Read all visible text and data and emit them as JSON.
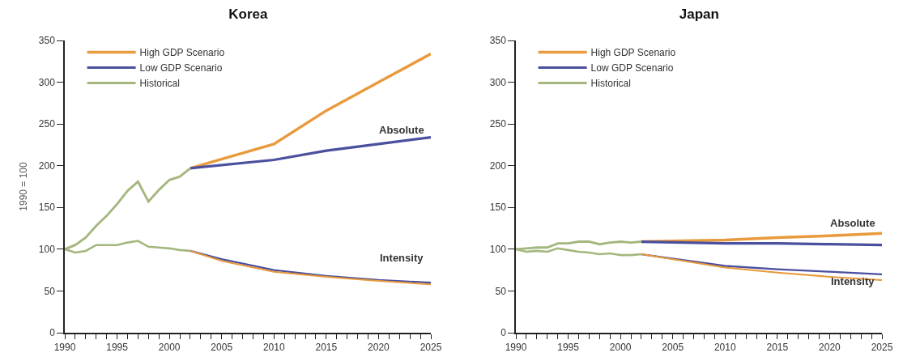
{
  "chart_data": [
    {
      "type": "line",
      "title": "Korea",
      "ylabel": "1990 = 100",
      "xlim": [
        1990,
        2025
      ],
      "ylim": [
        0,
        350
      ],
      "yticks": [
        0,
        50,
        100,
        150,
        200,
        250,
        300,
        350
      ],
      "xticks": [
        1990,
        {
          "value": 1991,
          "label": null
        },
        {
          "value": 1992,
          "label": null
        },
        {
          "value": 1993,
          "label": null
        },
        {
          "value": 1994,
          "label": null
        },
        1995,
        {
          "value": 1996,
          "label": null
        },
        {
          "value": 1997,
          "label": null
        },
        {
          "value": 1998,
          "label": null
        },
        {
          "value": 1999,
          "label": null
        },
        2000,
        {
          "value": 2001,
          "label": null
        },
        {
          "value": 2002,
          "label": null
        },
        {
          "value": 2003,
          "label": null
        },
        {
          "value": 2004,
          "label": null
        },
        2005,
        {
          "value": 2006,
          "label": null
        },
        {
          "value": 2007,
          "label": null
        },
        {
          "value": 2008,
          "label": null
        },
        {
          "value": 2009,
          "label": null
        },
        2010,
        {
          "value": 2011,
          "label": null
        },
        {
          "value": 2012,
          "label": null
        },
        {
          "value": 2013,
          "label": null
        },
        {
          "value": 2014,
          "label": null
        },
        2015,
        {
          "value": 2016,
          "label": null
        },
        {
          "value": 2017,
          "label": null
        },
        {
          "value": 2018,
          "label": null
        },
        {
          "value": 2019,
          "label": null
        },
        2020,
        {
          "value": 2021,
          "label": null
        },
        {
          "value": 2022,
          "label": null
        },
        {
          "value": 2023,
          "label": null
        },
        {
          "value": 2024,
          "label": null
        },
        2025
      ],
      "grid": false,
      "legend": "top left",
      "marker": "none",
      "line_style": "solid",
      "series": [
        {
          "name": "High GDP Scenario",
          "color": "#e89a3c",
          "x": [
            2002,
            2010,
            2015,
            2020,
            2025
          ],
          "values": [
            197,
            226,
            266,
            300,
            334
          ]
        },
        {
          "name": "Low GDP Scenario",
          "color": "#4a4f9e",
          "x": [
            2002,
            2010,
            2015,
            2020,
            2025
          ],
          "values": [
            197,
            207,
            218,
            226,
            234
          ]
        },
        {
          "name": "Historical",
          "color": "#a3b77e",
          "x": [
            1990,
            1991,
            1992,
            1993,
            1994,
            1995,
            1996,
            1997,
            1998,
            1999,
            2000,
            2001,
            2002
          ],
          "values": [
            100,
            105,
            114,
            128,
            140,
            154,
            170,
            181,
            157,
            171,
            183,
            187,
            197
          ]
        },
        {
          "color": "#a3b77e",
          "x": [
            1990,
            1991,
            1992,
            1993,
            1994,
            1995,
            1996,
            1997,
            1998,
            1999,
            2000,
            2001,
            2002
          ],
          "values": [
            100,
            96,
            98,
            105,
            105,
            105,
            108,
            110,
            103,
            102,
            101,
            99,
            98
          ]
        },
        {
          "color": "#4a4f9e",
          "x": [
            2002,
            2005,
            2010,
            2015,
            2020,
            2025
          ],
          "values": [
            98,
            88,
            75,
            68,
            63,
            60
          ]
        },
        {
          "color": "#e89a3c",
          "x": [
            2002,
            2005,
            2010,
            2015,
            2020,
            2025
          ],
          "values": [
            98,
            86,
            73,
            67,
            62,
            58
          ]
        }
      ],
      "annotations": [
        "Absolute",
        "Intensity"
      ]
    },
    {
      "type": "line",
      "title": "Japan",
      "xlim": [
        1990,
        2025
      ],
      "ylim": [
        0,
        350
      ],
      "yticks": [
        0,
        50,
        100,
        150,
        200,
        250,
        300,
        350
      ],
      "xticks": [
        1990,
        {
          "value": 1991,
          "label": null
        },
        {
          "value": 1992,
          "label": null
        },
        {
          "value": 1993,
          "label": null
        },
        {
          "value": 1994,
          "label": null
        },
        1995,
        {
          "value": 1996,
          "label": null
        },
        {
          "value": 1997,
          "label": null
        },
        {
          "value": 1998,
          "label": null
        },
        {
          "value": 1999,
          "label": null
        },
        2000,
        {
          "value": 2001,
          "label": null
        },
        {
          "value": 2002,
          "label": null
        },
        {
          "value": 2003,
          "label": null
        },
        {
          "value": 2004,
          "label": null
        },
        2005,
        {
          "value": 2006,
          "label": null
        },
        {
          "value": 2007,
          "label": null
        },
        {
          "value": 2008,
          "label": null
        },
        {
          "value": 2009,
          "label": null
        },
        2010,
        {
          "value": 2011,
          "label": null
        },
        {
          "value": 2012,
          "label": null
        },
        {
          "value": 2013,
          "label": null
        },
        {
          "value": 2014,
          "label": null
        },
        2015,
        {
          "value": 2016,
          "label": null
        },
        {
          "value": 2017,
          "label": null
        },
        {
          "value": 2018,
          "label": null
        },
        {
          "value": 2019,
          "label": null
        },
        2020,
        {
          "value": 2021,
          "label": null
        },
        {
          "value": 2022,
          "label": null
        },
        {
          "value": 2023,
          "label": null
        },
        {
          "value": 2024,
          "label": null
        },
        2025
      ],
      "grid": false,
      "legend": "top left",
      "marker": "none",
      "line_style": "solid",
      "series": [
        {
          "name": "High GDP Scenario",
          "color": "#e89a3c",
          "x": [
            2002,
            2010,
            2015,
            2020,
            2025
          ],
          "values": [
            109,
            111,
            114,
            116,
            119
          ]
        },
        {
          "name": "Low GDP Scenario",
          "color": "#4a4f9e",
          "x": [
            2002,
            2010,
            2015,
            2020,
            2025
          ],
          "values": [
            109,
            107,
            107,
            106,
            105
          ]
        },
        {
          "name": "Historical",
          "color": "#a3b77e",
          "x": [
            1990,
            1991,
            1992,
            1993,
            1994,
            1995,
            1996,
            1997,
            1998,
            1999,
            2000,
            2001,
            2002
          ],
          "values": [
            100,
            101,
            102,
            102,
            107,
            107,
            109,
            109,
            106,
            108,
            109,
            108,
            109
          ]
        },
        {
          "color": "#a3b77e",
          "x": [
            1990,
            1991,
            1992,
            1993,
            1994,
            1995,
            1996,
            1997,
            1998,
            1999,
            2000,
            2001,
            2002
          ],
          "values": [
            100,
            97,
            98,
            97,
            101,
            99,
            97,
            96,
            94,
            95,
            93,
            93,
            94
          ]
        },
        {
          "color": "#4a4f9e",
          "x": [
            2002,
            2010,
            2015,
            2020,
            2025
          ],
          "values": [
            94,
            80,
            76,
            73,
            70
          ]
        },
        {
          "color": "#e89a3c",
          "x": [
            2002,
            2010,
            2015,
            2020,
            2025
          ],
          "values": [
            94,
            78,
            72,
            67,
            63
          ]
        }
      ],
      "annotations": [
        "Absolute",
        "Intensity"
      ]
    }
  ]
}
